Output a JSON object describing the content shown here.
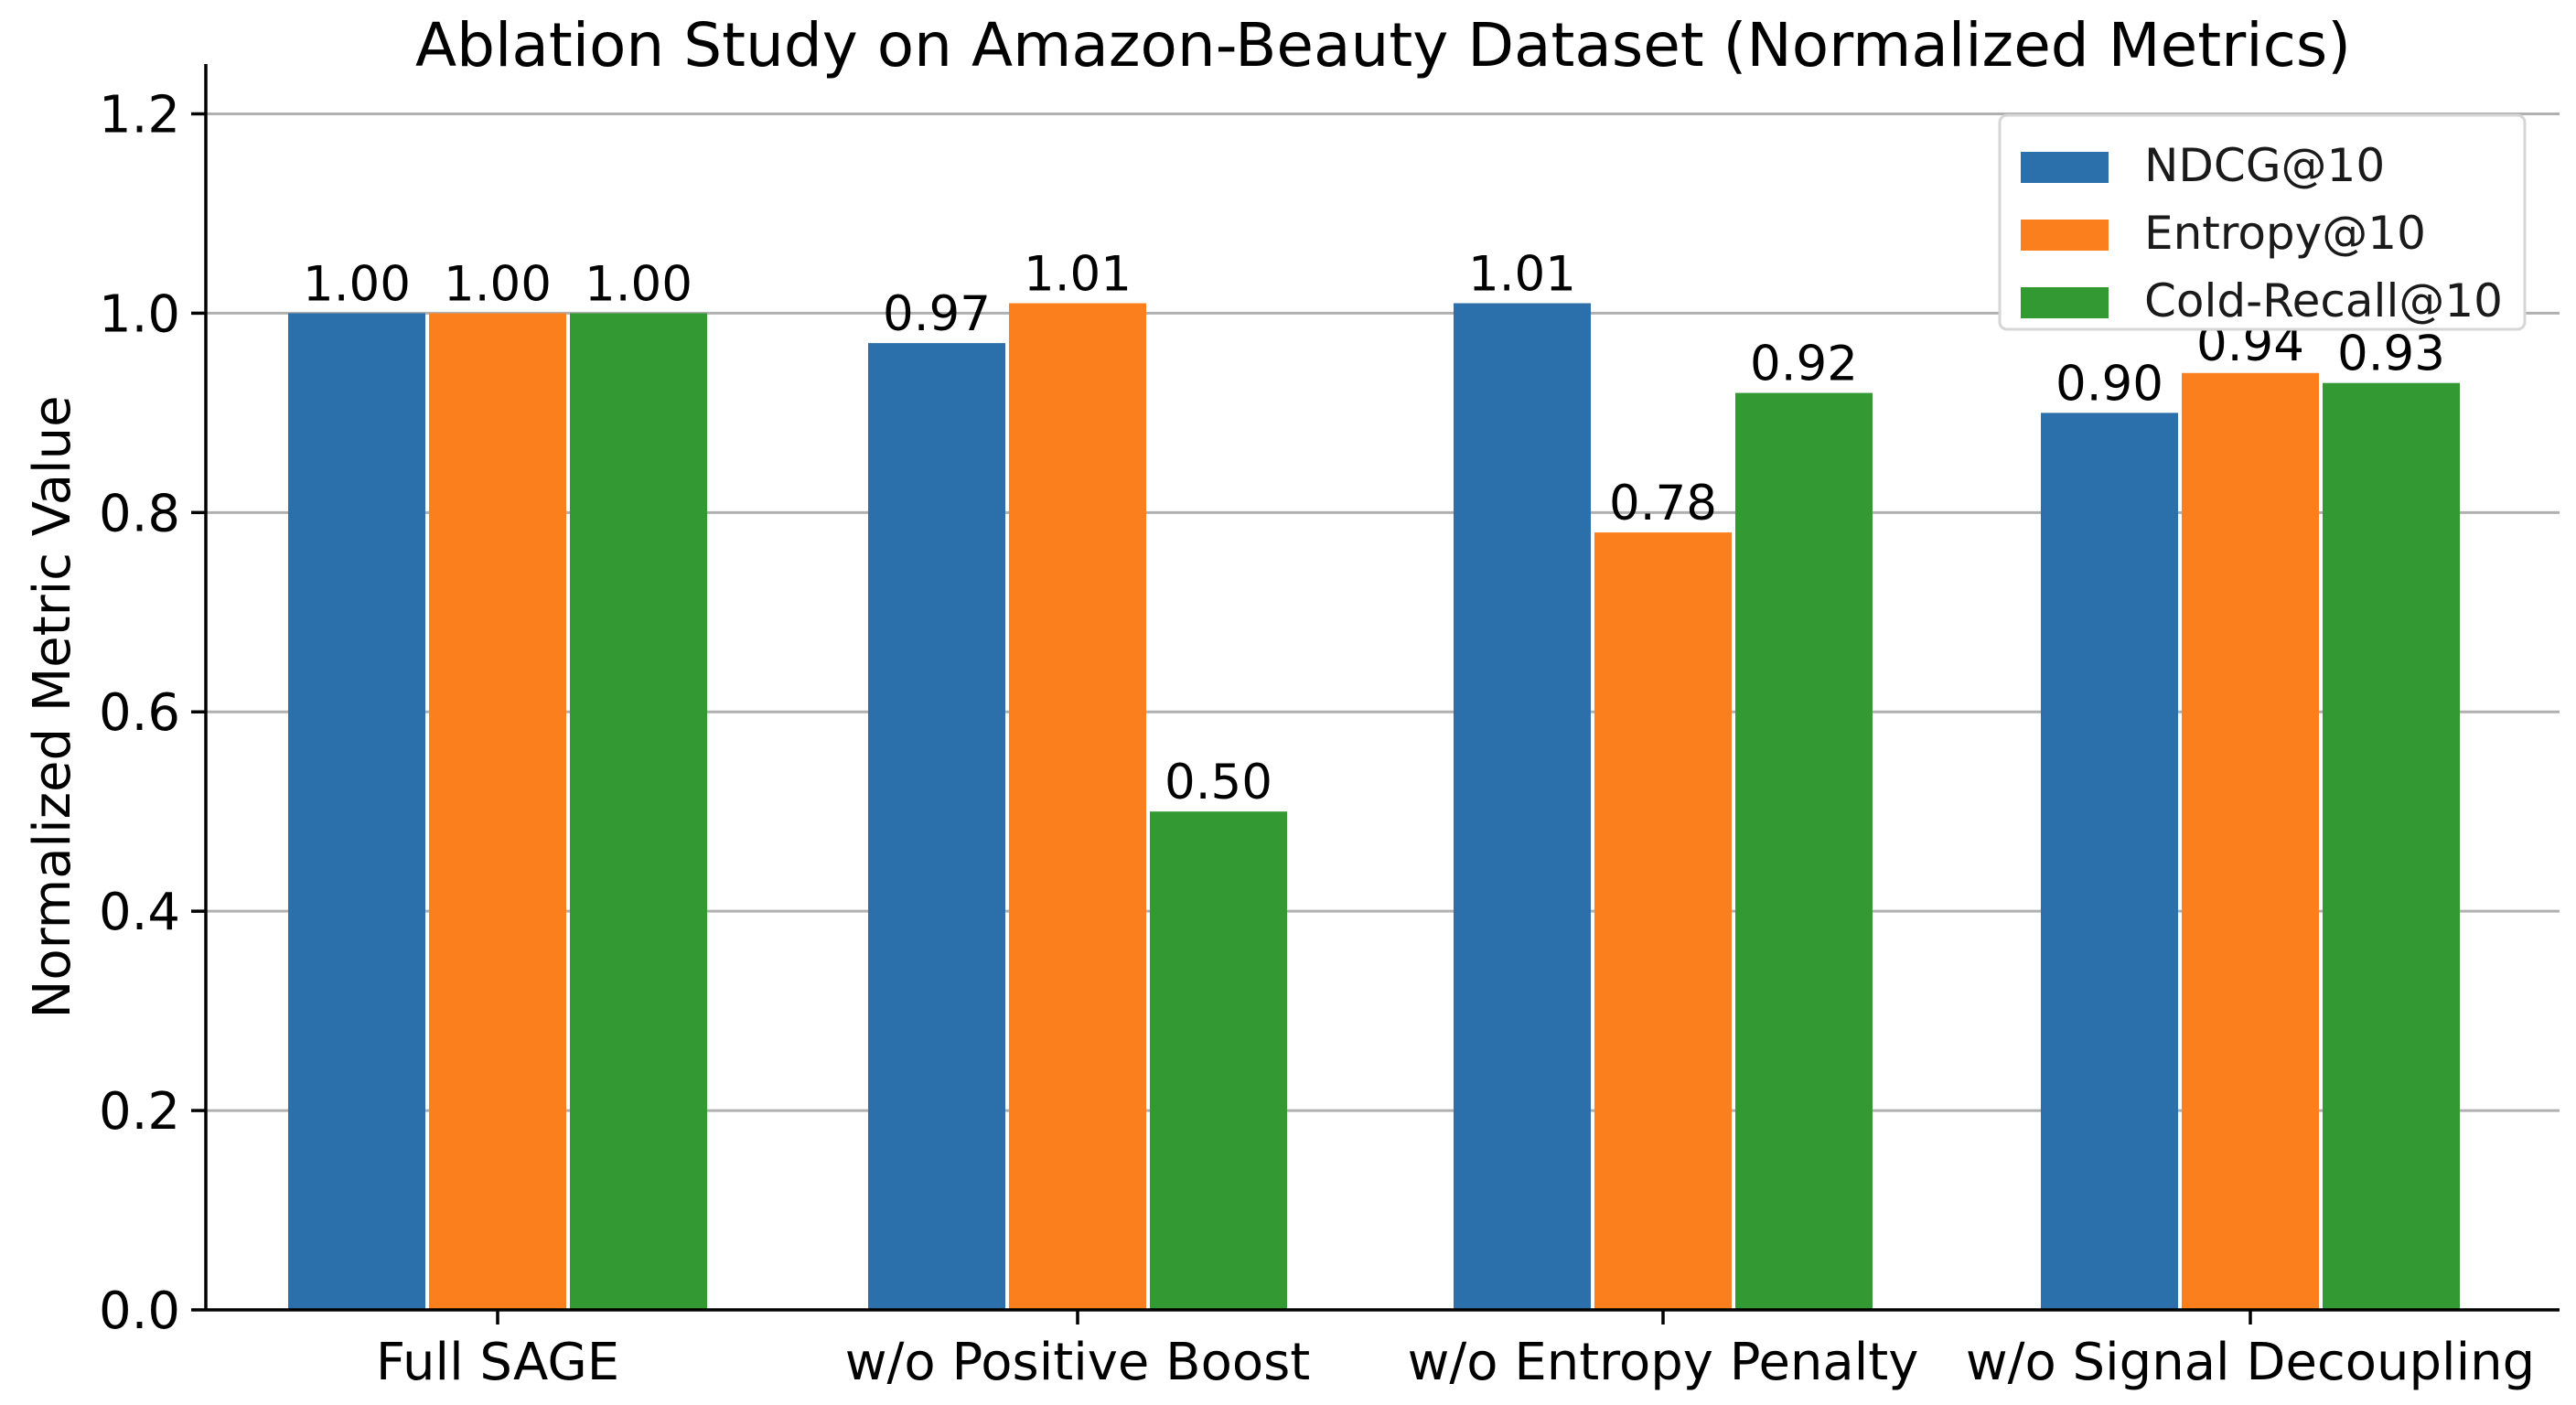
{
  "chart_data": {
    "type": "bar",
    "title": "Ablation Study on Amazon-Beauty Dataset (Normalized Metrics)",
    "xlabel": "",
    "ylabel": "Normalized Metric Value",
    "ylim": [
      0,
      1.25
    ],
    "yticks": [
      0.0,
      0.2,
      0.4,
      0.6,
      0.8,
      1.0,
      1.2
    ],
    "ytick_labels": [
      "0.0",
      "0.2",
      "0.4",
      "0.6",
      "0.8",
      "1.0",
      "1.2"
    ],
    "grid": true,
    "legend_position": "top-right",
    "categories": [
      "Full SAGE",
      "w/o Positive Boost",
      "w/o Entropy Penalty",
      "w/o Signal Decoupling"
    ],
    "series": [
      {
        "name": "NDCG@10",
        "color": "#2b6fab",
        "values": [
          1.0,
          0.97,
          1.01,
          0.9
        ],
        "labels": [
          "1.00",
          "0.97",
          "1.01",
          "0.90"
        ]
      },
      {
        "name": "Entropy@10",
        "color": "#fb7f1c",
        "values": [
          1.0,
          1.01,
          0.78,
          0.94
        ],
        "labels": [
          "1.00",
          "1.01",
          "0.78",
          "0.94"
        ]
      },
      {
        "name": "Cold-Recall@10",
        "color": "#339932",
        "values": [
          1.0,
          0.5,
          0.92,
          0.93
        ],
        "labels": [
          "1.00",
          "0.50",
          "0.92",
          "0.93"
        ]
      }
    ]
  }
}
